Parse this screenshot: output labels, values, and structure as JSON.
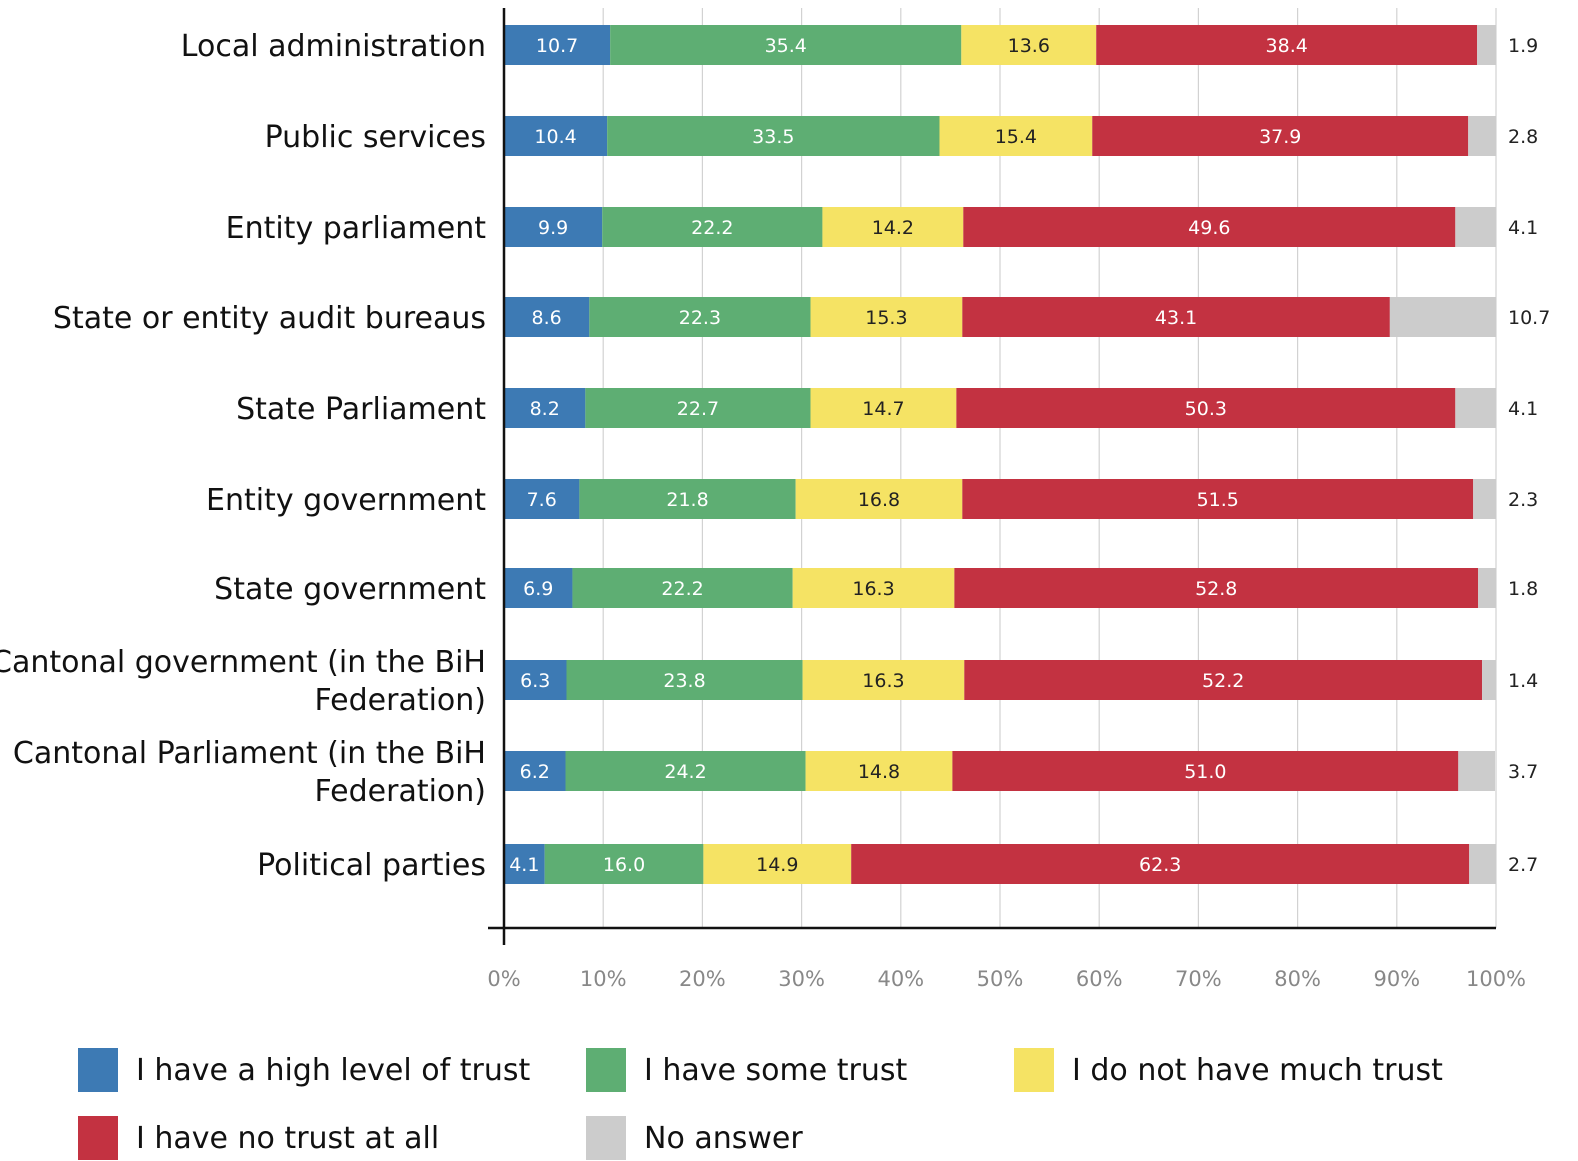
{
  "chart_data": {
    "type": "bar",
    "orientation": "horizontal",
    "stacked": true,
    "categories": [
      "Local administration",
      "Public services",
      "Entity parliament",
      "State or entity audit bureaus",
      "State Parliament",
      "Entity government",
      "State government",
      "Cantonal government (in the BiH Federation)",
      "Cantonal Parliament (in the BiH Federation)",
      "Political parties"
    ],
    "series": [
      {
        "name": "I have a high level of trust",
        "color": "#3d7ab4",
        "values": [
          10.7,
          10.4,
          9.9,
          8.6,
          8.2,
          7.6,
          6.9,
          6.3,
          6.2,
          4.1
        ]
      },
      {
        "name": "I have some trust",
        "color": "#5eae73",
        "values": [
          35.4,
          33.5,
          22.2,
          22.3,
          22.7,
          21.8,
          22.2,
          23.8,
          24.2,
          16.0
        ]
      },
      {
        "name": "I do not have much trust",
        "color": "#f5e364",
        "values": [
          13.6,
          15.4,
          14.2,
          15.3,
          14.7,
          16.8,
          16.3,
          16.3,
          14.8,
          14.9
        ]
      },
      {
        "name": "I have no trust at all",
        "color": "#c33241",
        "values": [
          38.4,
          37.9,
          49.6,
          43.1,
          50.3,
          51.5,
          52.8,
          52.2,
          51.0,
          62.3
        ]
      },
      {
        "name": "No answer",
        "color": "#cccccc",
        "values": [
          1.9,
          2.8,
          4.1,
          10.7,
          4.1,
          2.3,
          1.8,
          1.4,
          3.7,
          2.7
        ]
      }
    ],
    "xlim": [
      0,
      100
    ],
    "x_ticks": [
      "0%",
      "10%",
      "20%",
      "30%",
      "40%",
      "50%",
      "60%",
      "70%",
      "80%",
      "90%",
      "100%"
    ],
    "grid": true,
    "legend_position": "bottom"
  }
}
